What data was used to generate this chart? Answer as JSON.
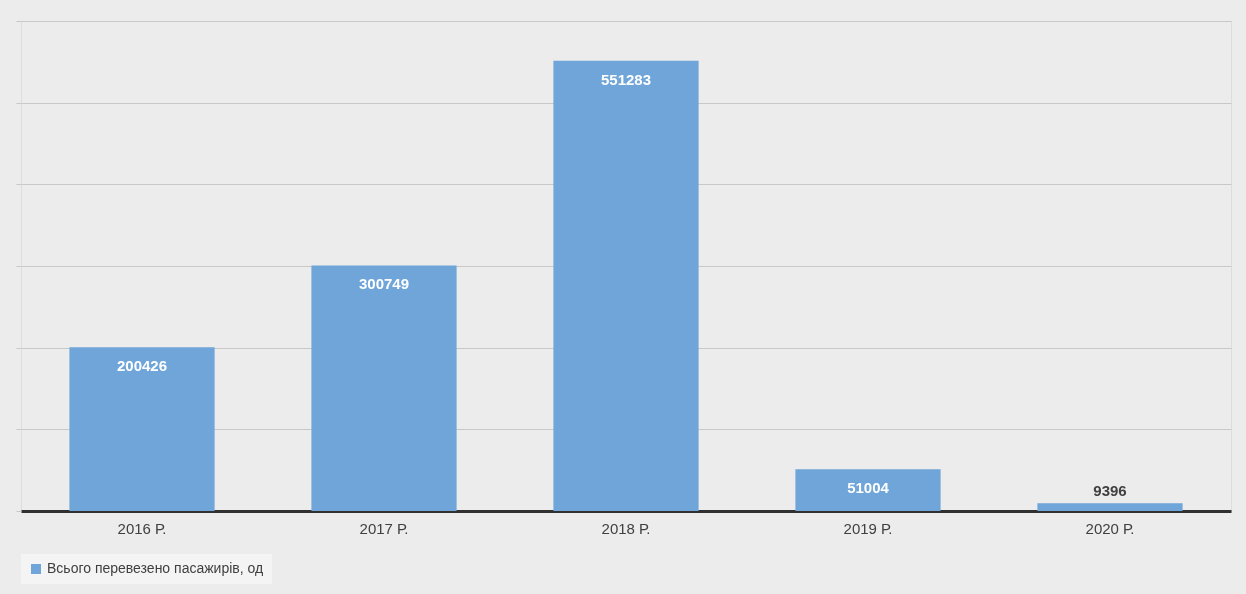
{
  "chart_data": {
    "type": "bar",
    "categories": [
      "2016 Р.",
      "2017 Р.",
      "2018 Р.",
      "2019 Р.",
      "2020 Р."
    ],
    "series": [
      {
        "name": "Всього перевезено пасажирів, од",
        "color": "#6fa5d8",
        "values": [
          200426,
          300749,
          551283,
          51004,
          9396
        ]
      }
    ],
    "ylim": [
      0,
      600000
    ],
    "yticks": [
      {
        "value": 0,
        "label": null
      },
      {
        "value": 100000,
        "label": null
      },
      {
        "value": 200000,
        "label": null
      },
      {
        "value": 300000,
        "label": null
      },
      {
        "value": 400000,
        "label": null
      },
      {
        "value": 500000,
        "label": null
      },
      {
        "value": 600000,
        "label": null
      }
    ],
    "tick_labels": "x",
    "grid": "y",
    "legend": "bottom",
    "data_labels": true
  }
}
